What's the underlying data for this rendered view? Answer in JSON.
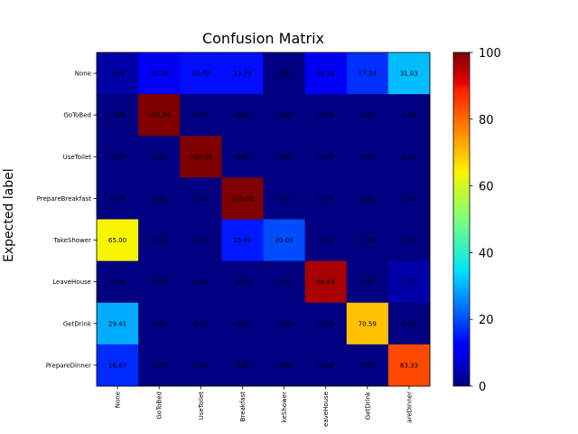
{
  "chart_data": {
    "type": "heatmap",
    "title": "Confusion Matrix",
    "ylabel": "Expected label",
    "xlabel": "",
    "rows": [
      "None",
      "GoToBed",
      "UseToilet",
      "PrepareBreakfast",
      "TakeShower",
      "LeaveHouse",
      "GetDrink",
      "PrepareDinner"
    ],
    "columns": [
      "None",
      "GoToBed",
      "UseToilet",
      "Breakfast",
      "keShower",
      "eaveHouse",
      "GetDrink",
      "areDinner"
    ],
    "values": [
      [
        3.45,
        10.34,
        13.79,
        13.79,
        0.0,
        10.34,
        17.24,
        31.03
      ],
      [
        0.0,
        100.0,
        0.0,
        0.0,
        0.0,
        0.0,
        0.0,
        0.0
      ],
      [
        0.0,
        0.0,
        100.0,
        0.0,
        0.0,
        0.0,
        0.0,
        0.0
      ],
      [
        0.0,
        0.0,
        0.0,
        100.0,
        0.0,
        0.0,
        0.0,
        0.0
      ],
      [
        65.0,
        0.0,
        0.0,
        15.0,
        20.0,
        0.0,
        0.0,
        0.0
      ],
      [
        0.0,
        0.0,
        0.0,
        0.0,
        0.0,
        96.43,
        0.0,
        3.57
      ],
      [
        29.41,
        0.0,
        0.0,
        0.0,
        0.0,
        0.0,
        70.59,
        0.0
      ],
      [
        16.67,
        0.0,
        0.0,
        0.0,
        0.0,
        0.0,
        0.0,
        83.33
      ]
    ],
    "cell_labels": [
      [
        "3.45",
        "10.34",
        "13.79",
        "13.79",
        "0.00",
        "10.34",
        "17.24",
        "31.03"
      ],
      [
        "0.00",
        "100.00",
        "0.00",
        "0.00",
        "0.00",
        "0.00",
        "0.00",
        "0.00"
      ],
      [
        "0.00",
        "0.00",
        "100.00",
        "0.00",
        "0.00",
        "0.00",
        "0.00",
        "0.00"
      ],
      [
        "0.00",
        "0.00",
        "0.00",
        "100.00",
        "0.00",
        "0.00",
        "0.00",
        "0.00"
      ],
      [
        "65.00",
        "0.00",
        "0.00",
        "15.00",
        "20.00",
        "0.00",
        "0.00",
        "0.00"
      ],
      [
        "0.00",
        "0.00",
        "0.00",
        "0.00",
        "0.00",
        "96.43",
        "0.00",
        "3.57"
      ],
      [
        "29.41",
        "0.00",
        "0.00",
        "0.00",
        "0.00",
        "0.00",
        "70.59",
        "0.00"
      ],
      [
        "16.67",
        "0.00",
        "0.00",
        "0.00",
        "0.00",
        "0.00",
        "0.00",
        "83.33"
      ]
    ],
    "colorbar": {
      "colormap": "jet",
      "range": [
        0,
        100
      ],
      "ticks": [
        0,
        20,
        40,
        60,
        80,
        100
      ],
      "tick_labels": [
        "0",
        "20",
        "40",
        "60",
        "80",
        "100"
      ]
    }
  }
}
